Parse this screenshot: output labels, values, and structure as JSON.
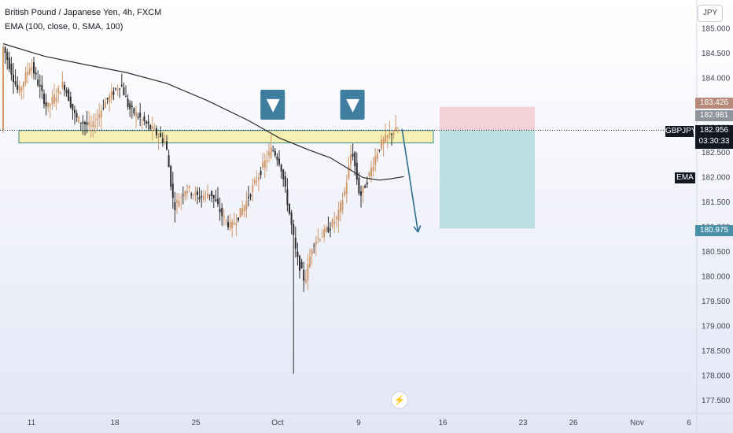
{
  "header": {
    "symbol_line": "British Pound / Japanese Yen, 4h, FXCM",
    "indicator_line": "EMA (100, close, 0, SMA, 100)"
  },
  "currency_badge": "JPY",
  "price_tags": {
    "target_top": "183.426",
    "last_high": "182.981",
    "symbol": "GBPJPY",
    "current": "182.956",
    "countdown": "03:30:33",
    "ema_label": "EMA",
    "target_bottom": "180.975"
  },
  "colors": {
    "bull": "#d19a6d",
    "bear": "#2e2e2e",
    "ema": "#2b2b2b",
    "zone_fill": "#f7f0b5",
    "zone_border": "#3a8a8a",
    "marker": "#3f7e9f",
    "stop_zone": "#f3c9d0",
    "target_zone": "#a8d9d9",
    "arrow": "#2f6f93"
  },
  "chart_data": {
    "type": "candlestick",
    "title": "British Pound / Japanese Yen, 4h, FXCM",
    "y_axis": {
      "range": [
        177.3,
        185.25
      ],
      "ticks": [
        "185.000",
        "184.500",
        "184.000",
        "183.500",
        "183.000",
        "182.500",
        "182.000",
        "181.500",
        "181.000",
        "180.500",
        "180.000",
        "179.500",
        "179.000",
        "178.500",
        "178.000",
        "177.500"
      ]
    },
    "x_axis": {
      "ticks": [
        "11",
        "18",
        "25",
        "Oct",
        "9",
        "16",
        "23",
        "26",
        "Nov",
        "6"
      ]
    },
    "ema": {
      "name": "EMA",
      "points": [
        [
          0,
          184.7
        ],
        [
          20,
          184.45
        ],
        [
          40,
          184.28
        ],
        [
          60,
          184.12
        ],
        [
          80,
          183.9
        ],
        [
          100,
          183.55
        ],
        [
          120,
          183.15
        ],
        [
          135,
          182.8
        ],
        [
          150,
          182.55
        ],
        [
          160,
          182.4
        ],
        [
          168,
          182.2
        ],
        [
          176,
          182.0
        ],
        [
          184,
          181.95
        ],
        [
          190,
          181.98
        ],
        [
          196,
          182.02
        ]
      ]
    },
    "support_zone": [
      182.7,
      182.95
    ],
    "markers": [
      {
        "bar": 132,
        "symbol": "▼"
      },
      {
        "bar": 171,
        "symbol": "▼"
      }
    ],
    "position": {
      "entry": 182.956,
      "stop": 183.426,
      "target": 180.975
    },
    "projection_arrow": {
      "from": [
        192,
        182.98
      ],
      "to": [
        201,
        180.9
      ]
    },
    "spikes": [
      {
        "bar": 142,
        "high": 180.55,
        "low": 178.05
      }
    ],
    "key_extremes": {
      "high": 184.7,
      "low": 178.05
    }
  }
}
